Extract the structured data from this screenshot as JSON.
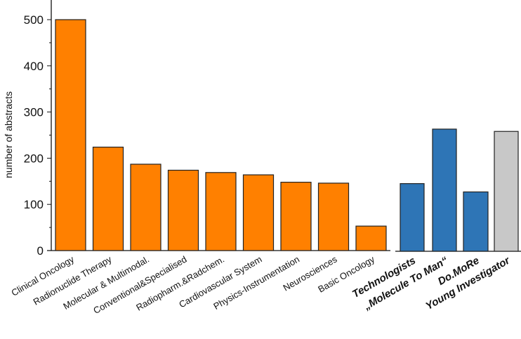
{
  "chart_data": {
    "type": "bar",
    "title": "",
    "xlabel": "",
    "ylabel": "number of abstracts",
    "ylim": [
      0,
      540
    ],
    "yticks": [
      0,
      100,
      200,
      300,
      400,
      500
    ],
    "grid": false,
    "groups": [
      {
        "color": "#ff8000",
        "categories": [
          "Clinical Oncology",
          "Radionuclide Therapy",
          "Molecular & Multimodal.",
          "Conventional&Specialised",
          "Radiopharm.&Radchem.",
          "Cardiovascular System",
          "Physics-Instrumentation",
          "Neurosciences",
          "Basic Oncology"
        ],
        "values": [
          500,
          224,
          187,
          174,
          169,
          164,
          148,
          146,
          53
        ]
      },
      {
        "color": "#2e75b6",
        "categories": [
          "Technologists",
          "„Molecule To Man“",
          "Do.MoRe"
        ],
        "values": [
          145,
          263,
          127
        ]
      },
      {
        "color": "#c8c8c8",
        "categories": [
          "Young Investigator"
        ],
        "values": [
          258
        ]
      }
    ]
  }
}
